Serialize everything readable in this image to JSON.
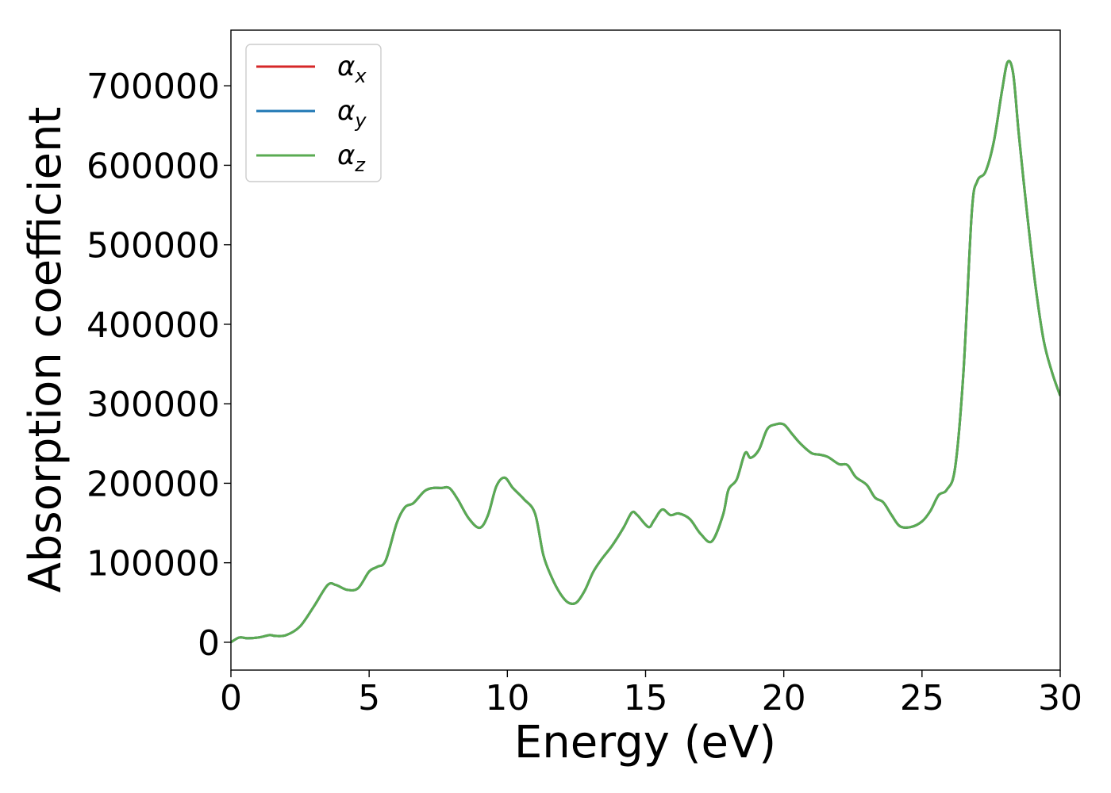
{
  "chart_data": {
    "type": "line",
    "xlabel": "Energy (eV)",
    "ylabel": "Absorption coefficient",
    "xlim": [
      0,
      30
    ],
    "ylim": [
      -35000,
      770000
    ],
    "xticks": [
      0,
      5,
      10,
      15,
      20,
      25,
      30
    ],
    "yticks": [
      0,
      100000,
      200000,
      300000,
      400000,
      500000,
      600000,
      700000
    ],
    "grid": false,
    "legend_position": "top-left",
    "x": [
      0,
      0.3,
      0.6,
      1.0,
      1.4,
      1.6,
      2.0,
      2.5,
      3.0,
      3.5,
      3.8,
      4.2,
      4.6,
      5.0,
      5.3,
      5.6,
      6.0,
      6.3,
      6.6,
      7.0,
      7.3,
      7.6,
      7.9,
      8.2,
      8.6,
      9.0,
      9.3,
      9.6,
      9.9,
      10.2,
      10.6,
      11.0,
      11.3,
      11.6,
      11.9,
      12.2,
      12.5,
      12.8,
      13.1,
      13.4,
      13.8,
      14.2,
      14.5,
      14.7,
      15.1,
      15.3,
      15.6,
      15.9,
      16.2,
      16.6,
      17.0,
      17.4,
      17.8,
      18.0,
      18.3,
      18.6,
      18.8,
      19.1,
      19.4,
      19.7,
      20.0,
      20.3,
      20.6,
      21.0,
      21.3,
      21.6,
      22.0,
      22.3,
      22.6,
      23.0,
      23.3,
      23.6,
      23.9,
      24.2,
      24.6,
      25.0,
      25.3,
      25.6,
      25.9,
      26.2,
      26.5,
      26.8,
      27.0,
      27.3,
      27.6,
      27.9,
      28.1,
      28.3,
      28.5,
      28.8,
      29.1,
      29.4,
      29.7,
      30.0
    ],
    "series": [
      {
        "name": "α_x",
        "color": "#d62728",
        "values": [
          0,
          6000,
          5000,
          6000,
          9000,
          8000,
          9000,
          20000,
          45000,
          72000,
          72000,
          66000,
          68000,
          89000,
          95000,
          103000,
          150000,
          170000,
          175000,
          190000,
          194000,
          194000,
          194000,
          180000,
          156000,
          144000,
          160000,
          196000,
          207000,
          194000,
          180000,
          162000,
          110000,
          82000,
          62000,
          50000,
          50000,
          65000,
          88000,
          104000,
          122000,
          144000,
          163000,
          160000,
          145000,
          153000,
          167000,
          160000,
          162000,
          155000,
          136000,
          127000,
          160000,
          192000,
          205000,
          238000,
          232000,
          242000,
          268000,
          274000,
          274000,
          262000,
          250000,
          238000,
          236000,
          233000,
          224000,
          223000,
          208000,
          198000,
          182000,
          176000,
          160000,
          146000,
          145000,
          152000,
          165000,
          185000,
          192000,
          220000,
          340000,
          540000,
          580000,
          592000,
          630000,
          695000,
          730000,
          715000,
          640000,
          540000,
          450000,
          380000,
          340000,
          310000
        ]
      },
      {
        "name": "α_y",
        "color": "#1f77b4",
        "values": [
          0,
          6000,
          5000,
          6000,
          9000,
          8000,
          9000,
          20000,
          45000,
          72000,
          72000,
          66000,
          68000,
          89000,
          95000,
          103000,
          150000,
          170000,
          175000,
          190000,
          194000,
          194000,
          194000,
          180000,
          156000,
          144000,
          160000,
          196000,
          207000,
          194000,
          180000,
          162000,
          110000,
          82000,
          62000,
          50000,
          50000,
          65000,
          88000,
          104000,
          122000,
          144000,
          163000,
          160000,
          145000,
          153000,
          167000,
          160000,
          162000,
          155000,
          136000,
          127000,
          160000,
          192000,
          205000,
          238000,
          232000,
          242000,
          268000,
          274000,
          274000,
          262000,
          250000,
          238000,
          236000,
          233000,
          224000,
          223000,
          208000,
          198000,
          182000,
          176000,
          160000,
          146000,
          145000,
          152000,
          165000,
          185000,
          192000,
          220000,
          340000,
          540000,
          580000,
          592000,
          630000,
          695000,
          730000,
          715000,
          640000,
          540000,
          450000,
          380000,
          340000,
          310000
        ]
      },
      {
        "name": "α_z",
        "color": "#5aab52",
        "values": [
          0,
          6000,
          5000,
          6000,
          9000,
          8000,
          9000,
          20000,
          45000,
          72000,
          72000,
          66000,
          68000,
          89000,
          95000,
          103000,
          150000,
          170000,
          175000,
          190000,
          194000,
          194000,
          194000,
          180000,
          156000,
          144000,
          160000,
          196000,
          207000,
          194000,
          180000,
          162000,
          110000,
          82000,
          62000,
          50000,
          50000,
          65000,
          88000,
          104000,
          122000,
          144000,
          163000,
          160000,
          145000,
          153000,
          167000,
          160000,
          162000,
          155000,
          136000,
          127000,
          160000,
          192000,
          205000,
          238000,
          232000,
          242000,
          268000,
          274000,
          274000,
          262000,
          250000,
          238000,
          236000,
          233000,
          224000,
          223000,
          208000,
          198000,
          182000,
          176000,
          160000,
          146000,
          145000,
          152000,
          165000,
          185000,
          192000,
          220000,
          340000,
          540000,
          580000,
          592000,
          630000,
          695000,
          730000,
          715000,
          640000,
          540000,
          450000,
          380000,
          340000,
          310000
        ]
      }
    ],
    "legend": [
      {
        "symbol": "α",
        "sub": "x",
        "color": "#d62728"
      },
      {
        "symbol": "α",
        "sub": "y",
        "color": "#1f77b4"
      },
      {
        "symbol": "α",
        "sub": "z",
        "color": "#5aab52"
      }
    ]
  }
}
